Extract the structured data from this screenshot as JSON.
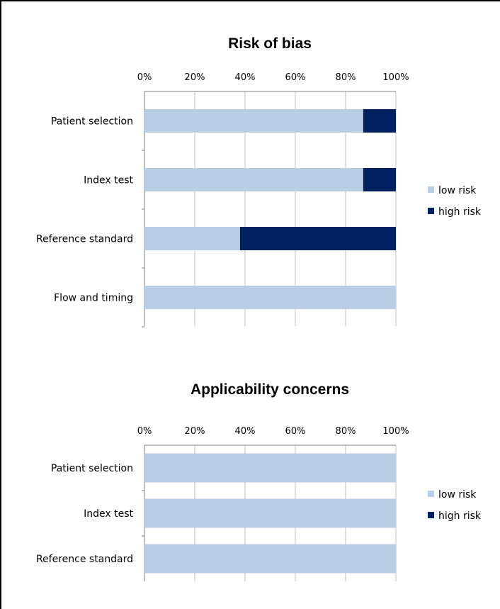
{
  "colors": {
    "low_risk": "#b9cde5",
    "high_risk": "#002060",
    "grid": "#bfbfbf",
    "axis": "#7f7f7f"
  },
  "chart_data": [
    {
      "type": "bar",
      "orientation": "horizontal",
      "stacked": true,
      "title": "Risk of bias",
      "categories": [
        "Patient selection",
        "Index test",
        "Reference standard",
        "Flow and timing"
      ],
      "series": [
        {
          "name": "low risk",
          "values": [
            87,
            87,
            38,
            100
          ]
        },
        {
          "name": "high risk",
          "values": [
            13,
            13,
            62,
            0
          ]
        }
      ],
      "x_ticks": [
        "0%",
        "20%",
        "40%",
        "60%",
        "80%",
        "100%"
      ],
      "xlim": [
        0,
        100
      ],
      "grid": true,
      "legend": "right",
      "axis_position": "top"
    },
    {
      "type": "bar",
      "orientation": "horizontal",
      "stacked": true,
      "title": "Applicability concerns",
      "categories": [
        "Patient selection",
        "Index test",
        "Reference standard"
      ],
      "series": [
        {
          "name": "low risk",
          "values": [
            100,
            100,
            100
          ]
        },
        {
          "name": "high risk",
          "values": [
            0,
            0,
            0
          ]
        }
      ],
      "x_ticks": [
        "0%",
        "20%",
        "40%",
        "60%",
        "80%",
        "100%"
      ],
      "xlim": [
        0,
        100
      ],
      "grid": true,
      "legend": "right",
      "axis_position": "top"
    }
  ]
}
